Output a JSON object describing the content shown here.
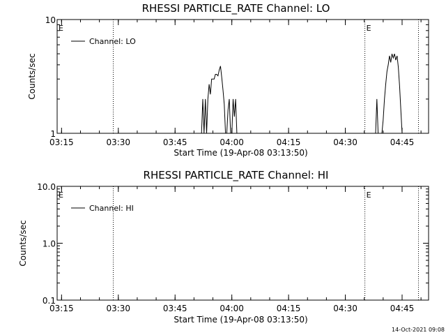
{
  "footer_text": "14-Oct-2021 09:08",
  "chart_data": [
    {
      "type": "line",
      "title": "RHESSI PARTICLE_RATE Channel: LO",
      "xlabel": "Start Time (19-Apr-08 03:13:50)",
      "ylabel": "Counts/sec",
      "yscale": "log",
      "ylim": [
        1,
        10
      ],
      "xlim": [
        "03:13:50",
        "04:52:00"
      ],
      "xticks": [
        "03:15",
        "03:30",
        "03:45",
        "04:00",
        "04:15",
        "04:30",
        "04:45"
      ],
      "yticks": [
        "1",
        "10"
      ],
      "legend": {
        "label": "Channel: LO",
        "position": "top-left"
      },
      "vertical_lines": [
        "03:28:40",
        "04:35:10",
        "04:49:20"
      ],
      "markers": [
        {
          "text": "E",
          "time": "03:13:50"
        },
        {
          "text": "E",
          "time": "04:35:10"
        }
      ],
      "series": [
        {
          "name": "Channel: LO",
          "color": "#000000",
          "points": [
            [
              "03:52:00",
              1
            ],
            [
              "03:52:20",
              2
            ],
            [
              "03:52:40",
              1
            ],
            [
              "03:53:00",
              2
            ],
            [
              "03:53:20",
              1
            ],
            [
              "03:53:40",
              2
            ],
            [
              "03:54:00",
              2.7
            ],
            [
              "03:54:20",
              2.2
            ],
            [
              "03:54:40",
              3
            ],
            [
              "03:55:00",
              3
            ],
            [
              "03:55:20",
              3
            ],
            [
              "03:55:40",
              3.3
            ],
            [
              "03:56:00",
              3.3
            ],
            [
              "03:56:20",
              3.2
            ],
            [
              "03:56:40",
              3.6
            ],
            [
              "03:57:00",
              3.9
            ],
            [
              "03:57:20",
              3.1
            ],
            [
              "03:57:40",
              2.4
            ],
            [
              "03:58:00",
              1.8
            ],
            [
              "03:58:20",
              1
            ],
            [
              "03:58:40",
              1
            ],
            [
              "03:59:00",
              1.6
            ],
            [
              "03:59:20",
              2
            ],
            [
              "03:59:40",
              1
            ],
            [
              "04:00:00",
              1
            ],
            [
              "04:00:20",
              2
            ],
            [
              "04:00:40",
              1.4
            ],
            [
              "04:01:00",
              2
            ],
            [
              "04:01:20",
              1
            ],
            [
              "04:38:00",
              1
            ],
            [
              "04:38:20",
              2
            ],
            [
              "04:38:40",
              1
            ],
            [
              "04:39:40",
              1
            ],
            [
              "04:40:00",
              1.3
            ],
            [
              "04:40:20",
              2
            ],
            [
              "04:40:40",
              2.7
            ],
            [
              "04:41:00",
              3.5
            ],
            [
              "04:41:20",
              4
            ],
            [
              "04:41:40",
              4.8
            ],
            [
              "04:42:00",
              4.2
            ],
            [
              "04:42:20",
              5
            ],
            [
              "04:42:40",
              4.6
            ],
            [
              "04:43:00",
              5
            ],
            [
              "04:43:20",
              4.4
            ],
            [
              "04:43:40",
              4.8
            ],
            [
              "04:44:00",
              3.8
            ],
            [
              "04:44:20",
              2.6
            ],
            [
              "04:44:40",
              1.6
            ],
            [
              "04:45:00",
              1
            ]
          ]
        }
      ]
    },
    {
      "type": "line",
      "title": "RHESSI PARTICLE_RATE Channel: HI",
      "xlabel": "Start Time (19-Apr-08 03:13:50)",
      "ylabel": "Counts/sec",
      "yscale": "log",
      "ylim": [
        0.1,
        10
      ],
      "xlim": [
        "03:13:50",
        "04:52:00"
      ],
      "xticks": [
        "03:15",
        "03:30",
        "03:45",
        "04:00",
        "04:15",
        "04:30",
        "04:45"
      ],
      "yticks": [
        "0.1",
        "1.0",
        "10.0"
      ],
      "legend": {
        "label": "Channel: HI",
        "position": "top-left"
      },
      "vertical_lines": [
        "03:28:40",
        "04:35:10",
        "04:49:20"
      ],
      "markers": [
        {
          "text": "E",
          "time": "03:13:50"
        },
        {
          "text": "E",
          "time": "04:35:10"
        }
      ],
      "series": [
        {
          "name": "Channel: HI",
          "color": "#000000",
          "points": []
        }
      ]
    }
  ]
}
